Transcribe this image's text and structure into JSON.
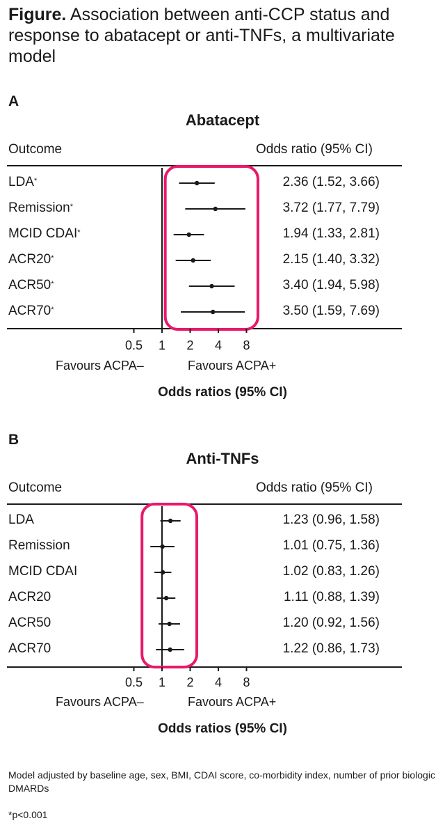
{
  "figure": {
    "label": "Figure.",
    "caption": "Association between anti-CCP status and response to abatacept or anti-TNFs, a multivariate model"
  },
  "chart_data": [
    {
      "type": "forest",
      "panel": "A",
      "title": "Abatacept",
      "outcome_header": "Outcome",
      "value_header": "Odds ratio (95% CI)",
      "xlabel": "Odds ratios (95% CI)",
      "x_scale": "log2",
      "x_ticks": [
        "0.5",
        "1",
        "2",
        "4",
        "8"
      ],
      "xlim": [
        0.5,
        8
      ],
      "reference_line": 1,
      "favours_left": "Favours ACPA–",
      "favours_right": "Favours ACPA+",
      "highlight_color": "#e8196a",
      "rows": [
        {
          "label": "LDA",
          "marker": "*",
          "or": 2.36,
          "lo": 1.52,
          "hi": 3.66,
          "text": "2.36 (1.52, 3.66)"
        },
        {
          "label": "Remission",
          "marker": "*",
          "or": 3.72,
          "lo": 1.77,
          "hi": 7.79,
          "text": "3.72 (1.77, 7.79)"
        },
        {
          "label": "MCID CDAI",
          "marker": "*",
          "or": 1.94,
          "lo": 1.33,
          "hi": 2.81,
          "text": "1.94 (1.33, 2.81)"
        },
        {
          "label": "ACR20",
          "marker": "*",
          "or": 2.15,
          "lo": 1.4,
          "hi": 3.32,
          "text": "2.15 (1.40, 3.32)"
        },
        {
          "label": "ACR50",
          "marker": "*",
          "or": 3.4,
          "lo": 1.94,
          "hi": 5.98,
          "text": "3.40 (1.94, 5.98)"
        },
        {
          "label": "ACR70",
          "marker": "*",
          "or": 3.5,
          "lo": 1.59,
          "hi": 7.69,
          "text": "3.50 (1.59, 7.69)"
        }
      ]
    },
    {
      "type": "forest",
      "panel": "B",
      "title": "Anti-TNFs",
      "outcome_header": "Outcome",
      "value_header": "Odds ratio (95% CI)",
      "xlabel": "Odds ratios (95% CI)",
      "x_scale": "log2",
      "x_ticks": [
        "0.5",
        "1",
        "2",
        "4",
        "8"
      ],
      "xlim": [
        0.5,
        8
      ],
      "reference_line": 1,
      "favours_left": "Favours ACPA–",
      "favours_right": "Favours ACPA+",
      "highlight_color": "#e8196a",
      "rows": [
        {
          "label": "LDA",
          "marker": "",
          "or": 1.23,
          "lo": 0.96,
          "hi": 1.58,
          "text": "1.23 (0.96, 1.58)"
        },
        {
          "label": "Remission",
          "marker": "",
          "or": 1.01,
          "lo": 0.75,
          "hi": 1.36,
          "text": "1.01 (0.75, 1.36)"
        },
        {
          "label": "MCID CDAI",
          "marker": "",
          "or": 1.02,
          "lo": 0.83,
          "hi": 1.26,
          "text": "1.02 (0.83, 1.26)"
        },
        {
          "label": "ACR20",
          "marker": "",
          "or": 1.11,
          "lo": 0.88,
          "hi": 1.39,
          "text": "1.11 (0.88, 1.39)"
        },
        {
          "label": "ACR50",
          "marker": "",
          "or": 1.2,
          "lo": 0.92,
          "hi": 1.56,
          "text": "1.20 (0.92, 1.56)"
        },
        {
          "label": "ACR70",
          "marker": "",
          "or": 1.22,
          "lo": 0.86,
          "hi": 1.73,
          "text": "1.22 (0.86, 1.73)"
        }
      ]
    }
  ],
  "footnotes": {
    "model": "Model adjusted by baseline age, sex, BMI, CDAI score, co-morbidity index, number of prior biologic DMARDs",
    "significance": "*p<0.001"
  }
}
